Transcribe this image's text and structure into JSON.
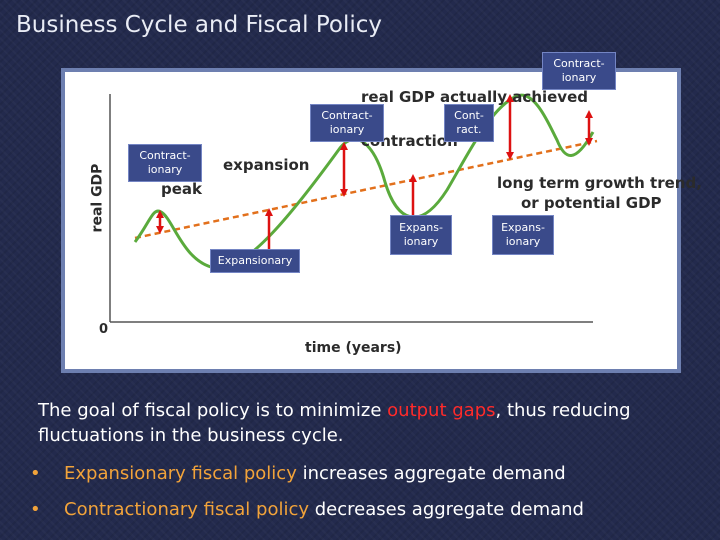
{
  "title": "Business Cycle and Fiscal Policy",
  "diagram": {
    "chart_labels": {
      "actual": "real GDP actually achieved",
      "contraction": "contraction",
      "expansion": "expansion",
      "peak": "peak",
      "trend_line1": "long term growth trend,",
      "trend_line2": "or potential GDP",
      "ylabel": "real GDP",
      "xlabel": "time (years)",
      "origin": "0"
    },
    "boxes": {
      "contract_top": "Contract-\nionary",
      "contract_mid": "Contract-\nionary",
      "cont_react": "Cont-\nract.",
      "contract_left": "Contract-\nionary",
      "expansionary_low": "Expansionary",
      "expans_mid": "Expans-\nionary",
      "expans_right": "Expans-\nionary"
    },
    "colors": {
      "curve": "#5aaa3c",
      "trend": "#e2701c",
      "arrow": "#dd1111",
      "box": "#3a4a8a"
    }
  },
  "body": {
    "sentence_pre": "The goal of fiscal policy is to minimize ",
    "sentence_highlight": "output gaps",
    "sentence_post": ", thus reducing fluctuations in the business cycle.",
    "bullets": [
      {
        "marker": "•",
        "highlight": "Expansionary fiscal policy",
        "rest": " increases aggregate demand"
      },
      {
        "marker": "•",
        "highlight": "Contractionary fiscal policy",
        "rest": " decreases aggregate demand"
      }
    ]
  }
}
